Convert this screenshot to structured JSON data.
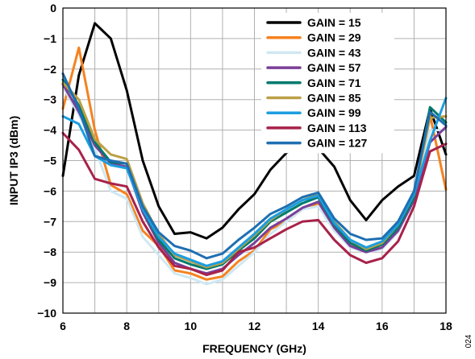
{
  "chart_data": {
    "type": "line",
    "xlabel": "FREQUENCY (GHz)",
    "ylabel": "INPUT IP3 (dBm)",
    "xlim": [
      6,
      18
    ],
    "ylim": [
      -10,
      0
    ],
    "xticks": [
      6,
      8,
      10,
      12,
      14,
      16,
      18
    ],
    "yticks": [
      0,
      -1,
      -2,
      -3,
      -4,
      -5,
      -6,
      -7,
      -8,
      -9,
      -10
    ],
    "grid": true,
    "legend_position": "top-right",
    "figure_id": "024",
    "series": [
      {
        "name": "GAIN = 15",
        "color": "#000000",
        "x": [
          6,
          6.5,
          7,
          7.5,
          8,
          8.5,
          9,
          9.5,
          10,
          10.5,
          11,
          11.5,
          12,
          12.5,
          13,
          13.5,
          14,
          14.5,
          15,
          15.5,
          16,
          16.5,
          17,
          17.5,
          18
        ],
        "y": [
          -5.5,
          -2.2,
          -0.5,
          -1.0,
          -2.7,
          -5.0,
          -6.5,
          -7.4,
          -7.35,
          -7.55,
          -7.2,
          -6.6,
          -6.1,
          -5.3,
          -4.75,
          -4.45,
          -4.6,
          -5.2,
          -6.3,
          -6.95,
          -6.3,
          -5.85,
          -5.5,
          -3.3,
          -4.8
        ]
      },
      {
        "name": "GAIN = 29",
        "color": "#f58220",
        "x": [
          6,
          6.5,
          7,
          7.5,
          8,
          8.5,
          9,
          9.5,
          10,
          10.5,
          11,
          11.5,
          12,
          12.5,
          13,
          13.5,
          14,
          14.5,
          15,
          15.5,
          16,
          16.5,
          17,
          17.5,
          18
        ],
        "y": [
          -3.3,
          -1.3,
          -4.0,
          -5.8,
          -6.1,
          -7.3,
          -7.8,
          -8.6,
          -8.7,
          -8.9,
          -8.8,
          -8.3,
          -7.95,
          -7.25,
          -7.0,
          -6.6,
          -6.4,
          -7.3,
          -7.75,
          -8.0,
          -7.85,
          -7.3,
          -6.3,
          -3.5,
          -5.95
        ]
      },
      {
        "name": "GAIN = 43",
        "color": "#cfe8f3",
        "x": [
          6,
          6.5,
          7,
          7.5,
          8,
          8.5,
          9,
          9.5,
          10,
          10.5,
          11,
          11.5,
          12,
          12.5,
          13,
          13.5,
          14,
          14.5,
          15,
          15.5,
          16,
          16.5,
          17,
          17.5,
          18
        ],
        "y": [
          -2.6,
          -3.5,
          -4.6,
          -6.0,
          -6.25,
          -7.5,
          -8.1,
          -8.7,
          -8.85,
          -9.05,
          -8.9,
          -8.45,
          -8.0,
          -7.4,
          -7.0,
          -6.6,
          -6.5,
          -7.3,
          -7.85,
          -8.0,
          -7.9,
          -7.35,
          -6.3,
          -4.0,
          -4.0
        ]
      },
      {
        "name": "GAIN = 57",
        "color": "#7a3f98",
        "x": [
          6,
          6.5,
          7,
          7.5,
          8,
          8.5,
          9,
          9.5,
          10,
          10.5,
          11,
          11.5,
          12,
          12.5,
          13,
          13.5,
          14,
          14.5,
          15,
          15.5,
          16,
          16.5,
          17,
          17.5,
          18
        ],
        "y": [
          -2.5,
          -3.4,
          -4.5,
          -5.1,
          -5.2,
          -6.7,
          -7.7,
          -8.35,
          -8.55,
          -8.7,
          -8.55,
          -8.1,
          -7.7,
          -7.2,
          -6.9,
          -6.55,
          -6.35,
          -7.2,
          -7.8,
          -8.0,
          -7.85,
          -7.3,
          -6.3,
          -4.4,
          -3.9
        ]
      },
      {
        "name": "GAIN = 71",
        "color": "#007a6c",
        "x": [
          6,
          6.5,
          7,
          7.5,
          8,
          8.5,
          9,
          9.5,
          10,
          10.5,
          11,
          11.5,
          12,
          12.5,
          13,
          13.5,
          14,
          14.5,
          15,
          15.5,
          16,
          16.5,
          17,
          17.5,
          18
        ],
        "y": [
          -2.35,
          -3.2,
          -4.4,
          -5.05,
          -5.1,
          -6.6,
          -7.6,
          -8.2,
          -8.4,
          -8.55,
          -8.4,
          -7.95,
          -7.55,
          -7.0,
          -6.7,
          -6.4,
          -6.2,
          -7.1,
          -7.7,
          -7.95,
          -7.75,
          -7.2,
          -6.2,
          -3.25,
          -3.75
        ]
      },
      {
        "name": "GAIN = 85",
        "color": "#bba046",
        "x": [
          6,
          6.5,
          7,
          7.5,
          8,
          8.5,
          9,
          9.5,
          10,
          10.5,
          11,
          11.5,
          12,
          12.5,
          13,
          13.5,
          14,
          14.5,
          15,
          15.5,
          16,
          16.5,
          17,
          17.5,
          18
        ],
        "y": [
          -2.45,
          -3.0,
          -4.3,
          -4.8,
          -4.95,
          -6.4,
          -7.4,
          -8.1,
          -8.3,
          -8.5,
          -8.35,
          -7.9,
          -7.45,
          -6.95,
          -6.6,
          -6.3,
          -6.1,
          -7.0,
          -7.6,
          -7.9,
          -7.7,
          -7.1,
          -6.1,
          -3.6,
          -3.55
        ]
      },
      {
        "name": "GAIN = 99",
        "color": "#1c9ee0",
        "x": [
          6,
          6.5,
          7,
          7.5,
          8,
          8.5,
          9,
          9.5,
          10,
          10.5,
          11,
          11.5,
          12,
          12.5,
          13,
          13.5,
          14,
          14.5,
          15,
          15.5,
          16,
          16.5,
          17,
          17.5,
          18
        ],
        "y": [
          -3.55,
          -3.8,
          -4.85,
          -5.15,
          -5.25,
          -6.6,
          -7.5,
          -8.05,
          -8.25,
          -8.45,
          -8.3,
          -7.85,
          -7.4,
          -6.9,
          -6.6,
          -6.3,
          -6.15,
          -7.05,
          -7.6,
          -7.85,
          -7.65,
          -7.1,
          -6.1,
          -4.35,
          -2.95
        ]
      },
      {
        "name": "GAIN = 113",
        "color": "#a8224a",
        "x": [
          6,
          6.5,
          7,
          7.5,
          8,
          8.5,
          9,
          9.5,
          10,
          10.5,
          11,
          11.5,
          12,
          12.5,
          13,
          13.5,
          14,
          14.5,
          15,
          15.5,
          16,
          16.5,
          17,
          17.5,
          18
        ],
        "y": [
          -4.1,
          -4.65,
          -5.6,
          -5.75,
          -5.85,
          -7.0,
          -7.85,
          -8.45,
          -8.55,
          -8.75,
          -8.6,
          -8.0,
          -7.85,
          -7.55,
          -7.25,
          -7.0,
          -6.95,
          -7.6,
          -8.1,
          -8.35,
          -8.2,
          -7.65,
          -6.5,
          -4.7,
          -4.45
        ]
      },
      {
        "name": "GAIN = 127",
        "color": "#1e6fb2",
        "x": [
          6,
          6.5,
          7,
          7.5,
          8,
          8.5,
          9,
          9.5,
          10,
          10.5,
          11,
          11.5,
          12,
          12.5,
          13,
          13.5,
          14,
          14.5,
          15,
          15.5,
          16,
          16.5,
          17,
          17.5,
          18
        ],
        "y": [
          -2.15,
          -3.3,
          -4.85,
          -5.0,
          -5.1,
          -6.5,
          -7.35,
          -7.8,
          -7.95,
          -8.2,
          -8.05,
          -7.6,
          -7.2,
          -6.75,
          -6.5,
          -6.2,
          -6.05,
          -6.9,
          -7.4,
          -7.6,
          -7.55,
          -7.0,
          -6.0,
          -3.4,
          -3.85
        ]
      }
    ]
  }
}
